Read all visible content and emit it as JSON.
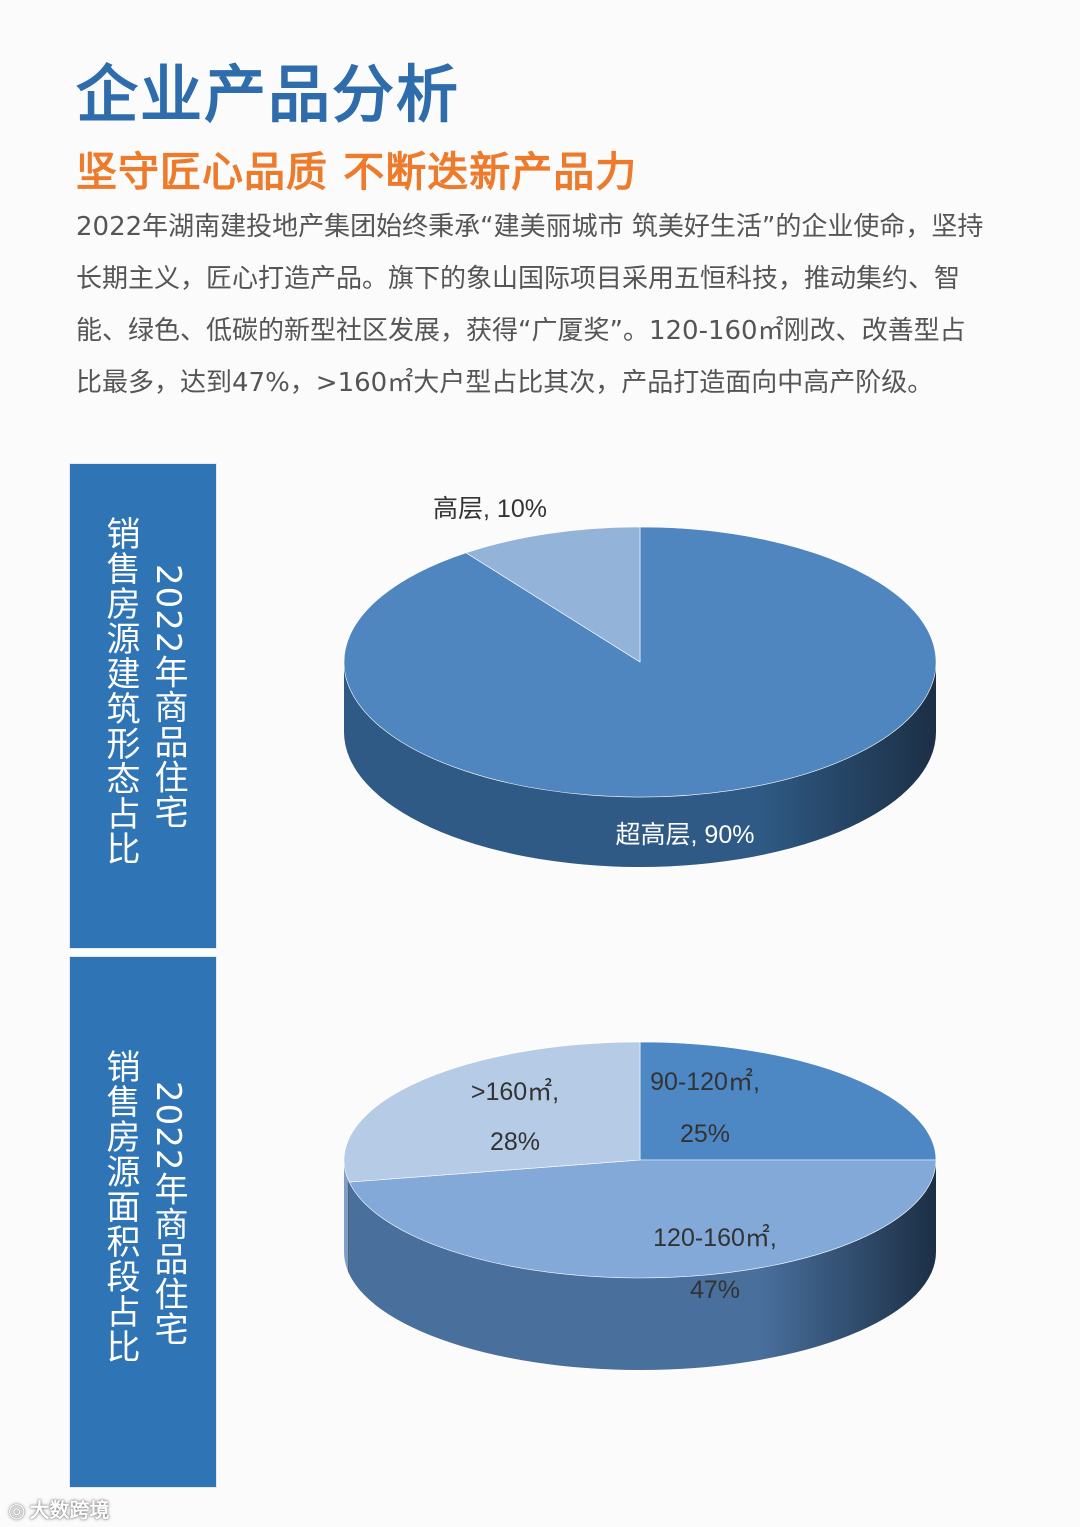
{
  "header": {
    "title": "企业产品分析",
    "subtitle": "坚守匠心品质 不断迭新产品力"
  },
  "paragraph": "2022年湖南建投地产集团始终秉承“建美丽城市 筑美好生活”的企业使命，坚持长期主义，匠心打造产品。旗下的象山国际项目采用五恒科技，推动集约、智能、绿色、低碳的新型社区发展，获得“广厦奖”。120-160㎡刚改、改善型占比最多，达到47%，>160㎡大户型占比其次，产品打造面向中高产阶级。",
  "panels": [
    {
      "line1": "2022年商品住宅",
      "line2": "销售房源建筑形态占比"
    },
    {
      "line1": "2022年商品住宅",
      "line2": "销售房源面积段占比"
    }
  ],
  "footer": {
    "logo_text": "大数跨境"
  },
  "colors": {
    "title": "#2e6cab",
    "subtitle": "#ee7a2c",
    "panel": "#2f74b5"
  },
  "chart_data": [
    {
      "type": "pie",
      "style": "3d",
      "slices": [
        {
          "name": "超高层",
          "value": 90,
          "label": "超高层, 90%",
          "color": "#4f86bf",
          "side_color": "#2f5a85"
        },
        {
          "name": "高层",
          "value": 10,
          "label": "高层, 10%",
          "color": "#93b3d9",
          "side_color": "#6d8fb8"
        }
      ]
    },
    {
      "type": "pie",
      "style": "3d",
      "slices": [
        {
          "name": "90-120㎡",
          "value": 25,
          "label_lines": [
            "90-120㎡,",
            "25%"
          ],
          "color": "#4e88c4",
          "side_color": "#2f5f90"
        },
        {
          "name": "120-160㎡",
          "value": 47,
          "label_lines": [
            "120-160㎡,",
            "47%"
          ],
          "color": "#82a9d8",
          "side_color": "#496f9d"
        },
        {
          "name": ">160㎡",
          "value": 28,
          "label_lines": [
            ">160㎡,",
            "28%"
          ],
          "color": "#b6cbe6",
          "side_color": "#7f9fc6"
        }
      ]
    }
  ]
}
